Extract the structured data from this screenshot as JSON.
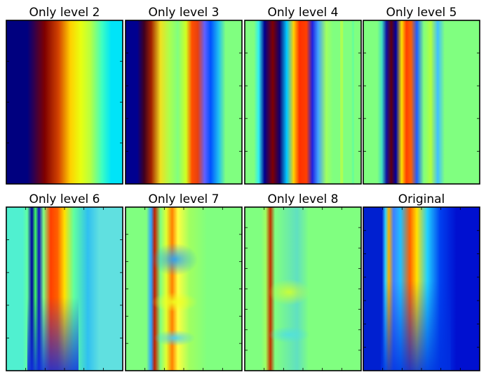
{
  "figure_title": "",
  "chart_data": [
    {
      "type": "heatmap",
      "title": "Only level 2",
      "xlabel": "",
      "ylabel": "",
      "colormap": "jet",
      "band_colors": [
        "#00007f",
        "#00007f",
        "#7f0000",
        "#d44400",
        "#ffd000",
        "#e8ff10",
        "#b8ff40",
        "#40ffc0",
        "#00e4f8",
        "#00e4f8"
      ],
      "band_stops": [
        0.0,
        0.18,
        0.33,
        0.45,
        0.55,
        0.64,
        0.72,
        0.82,
        0.9,
        1.0
      ],
      "stripes": [],
      "x_ticks": 0,
      "y_ticks": 3
    },
    {
      "type": "heatmap",
      "title": "Only level 3",
      "xlabel": "",
      "ylabel": "",
      "colormap": "jet",
      "band_colors": [
        "#000090",
        "#000090",
        "#400020",
        "#a02000",
        "#f0e020",
        "#a8ff50",
        "#80ff80",
        "#d0ff20",
        "#ff5000",
        "#e84010",
        "#6060ff",
        "#0050ff",
        "#20c0f0",
        "#80ff80",
        "#80ff80"
      ],
      "band_stops": [
        0.0,
        0.1,
        0.16,
        0.22,
        0.3,
        0.38,
        0.45,
        0.52,
        0.57,
        0.62,
        0.68,
        0.73,
        0.8,
        0.86,
        1.0
      ],
      "stripes": [],
      "x_ticks": 0,
      "y_ticks": 4
    },
    {
      "type": "heatmap",
      "title": "Only level 4",
      "xlabel": "",
      "ylabel": "",
      "colormap": "jet",
      "band_colors": [
        "#80ff80",
        "#80ff80",
        "#30f0f0",
        "#00008f",
        "#800000",
        "#100070",
        "#00c8ff",
        "#ffd000",
        "#ff3000",
        "#ff4000",
        "#2020e0",
        "#40a0ff",
        "#a0ff60",
        "#80ff80",
        "#80ff80"
      ],
      "band_stops": [
        0.0,
        0.08,
        0.12,
        0.17,
        0.24,
        0.3,
        0.36,
        0.42,
        0.47,
        0.53,
        0.58,
        0.63,
        0.7,
        0.76,
        1.0
      ],
      "stripes": [
        {
          "pos": 0.82,
          "width": 0.025,
          "color": "#c0ff40"
        },
        {
          "pos": 0.92,
          "width": 0.02,
          "color": "#60ffa0"
        }
      ],
      "x_ticks": 0,
      "y_ticks": 4
    },
    {
      "type": "heatmap",
      "title": "Only level 5",
      "xlabel": "",
      "ylabel": "",
      "colormap": "jet",
      "band_colors": [
        "#80ff80",
        "#80ff80",
        "#40e0c0",
        "#1010a0",
        "#600010",
        "#0000a0",
        "#ffe000",
        "#ff4000",
        "#ff6000",
        "#2060ff",
        "#80ff80",
        "#b0ff40",
        "#40c0ff",
        "#80ff80",
        "#80ff80"
      ],
      "band_stops": [
        0.0,
        0.12,
        0.16,
        0.2,
        0.24,
        0.28,
        0.33,
        0.37,
        0.41,
        0.46,
        0.52,
        0.58,
        0.64,
        0.7,
        1.0
      ],
      "stripes": [],
      "x_ticks": 0,
      "y_ticks": 4
    },
    {
      "type": "heatmap",
      "title": "Only level 6",
      "xlabel": "",
      "ylabel": "",
      "colormap": "jet",
      "band_colors": [
        "#50f0d0",
        "#50f0d0",
        "#60ffa0",
        "#0000a0",
        "#40ff60",
        "#1010c0",
        "#80ff80",
        "#ff4000",
        "#ff6000",
        "#ffe000",
        "#60ffa0",
        "#30c0f0",
        "#60e0e0",
        "#60e0e0"
      ],
      "band_stops": [
        0.0,
        0.14,
        0.18,
        0.22,
        0.25,
        0.28,
        0.32,
        0.38,
        0.44,
        0.5,
        0.58,
        0.7,
        0.8,
        1.0
      ],
      "stripes": [],
      "x_ticks": 5,
      "y_ticks": 4,
      "overlay": {
        "top_fraction": 0.55,
        "left": 0.18,
        "right": 0.62,
        "color": "#1030e0"
      }
    },
    {
      "type": "heatmap",
      "title": "Only level 7",
      "xlabel": "",
      "ylabel": "",
      "colormap": "jet",
      "band_colors": [
        "#80ff80",
        "#80ff80",
        "#30a0ff",
        "#c02000",
        "#80ff80",
        "#e0ff30",
        "#ff8000",
        "#ffff40",
        "#a0ff60",
        "#80ff80",
        "#80ff80"
      ],
      "band_stops": [
        0.0,
        0.18,
        0.22,
        0.25,
        0.3,
        0.35,
        0.4,
        0.45,
        0.55,
        0.7,
        1.0
      ],
      "stripes": [],
      "x_ticks": 5,
      "y_ticks": 5,
      "blobs": [
        {
          "cx": 0.42,
          "cy": 0.32,
          "rx": 0.2,
          "ry": 0.1,
          "color": "#20a0ff"
        },
        {
          "cx": 0.42,
          "cy": 0.58,
          "rx": 0.2,
          "ry": 0.06,
          "color": "#f0ff20"
        },
        {
          "cx": 0.42,
          "cy": 0.8,
          "rx": 0.18,
          "ry": 0.05,
          "color": "#40d0ff"
        }
      ]
    },
    {
      "type": "heatmap",
      "title": "Only level 8",
      "xlabel": "",
      "ylabel": "",
      "colormap": "jet",
      "band_colors": [
        "#80ff80",
        "#80ff80",
        "#a0ff60",
        "#c03000",
        "#80ff80",
        "#60e0c0",
        "#80ff80",
        "#80ff80"
      ],
      "band_stops": [
        0.0,
        0.14,
        0.18,
        0.22,
        0.26,
        0.45,
        0.55,
        1.0
      ],
      "stripes": [],
      "x_ticks": 5,
      "y_ticks": 7,
      "blobs": [
        {
          "cx": 0.38,
          "cy": 0.52,
          "rx": 0.18,
          "ry": 0.08,
          "color": "#d0ff30"
        },
        {
          "cx": 0.38,
          "cy": 0.78,
          "rx": 0.18,
          "ry": 0.05,
          "color": "#50e0e0"
        }
      ]
    },
    {
      "type": "heatmap",
      "title": "Original",
      "xlabel": "",
      "ylabel": "",
      "colormap": "jet",
      "band_colors": [
        "#0020d0",
        "#0020d0",
        "#30d0ff",
        "#ffb000",
        "#4080ff",
        "#20c0ff",
        "#ff6000",
        "#ffe000",
        "#20d0ff",
        "#0040f0",
        "#0010d0",
        "#0010d0"
      ],
      "band_stops": [
        0.0,
        0.16,
        0.19,
        0.22,
        0.26,
        0.32,
        0.4,
        0.46,
        0.55,
        0.66,
        0.8,
        1.0
      ],
      "stripes": [],
      "x_ticks": 5,
      "y_ticks": 6,
      "overlay": {
        "top_fraction": 0.45,
        "left": 0.15,
        "right": 0.75,
        "color": "#0030e0"
      }
    }
  ]
}
